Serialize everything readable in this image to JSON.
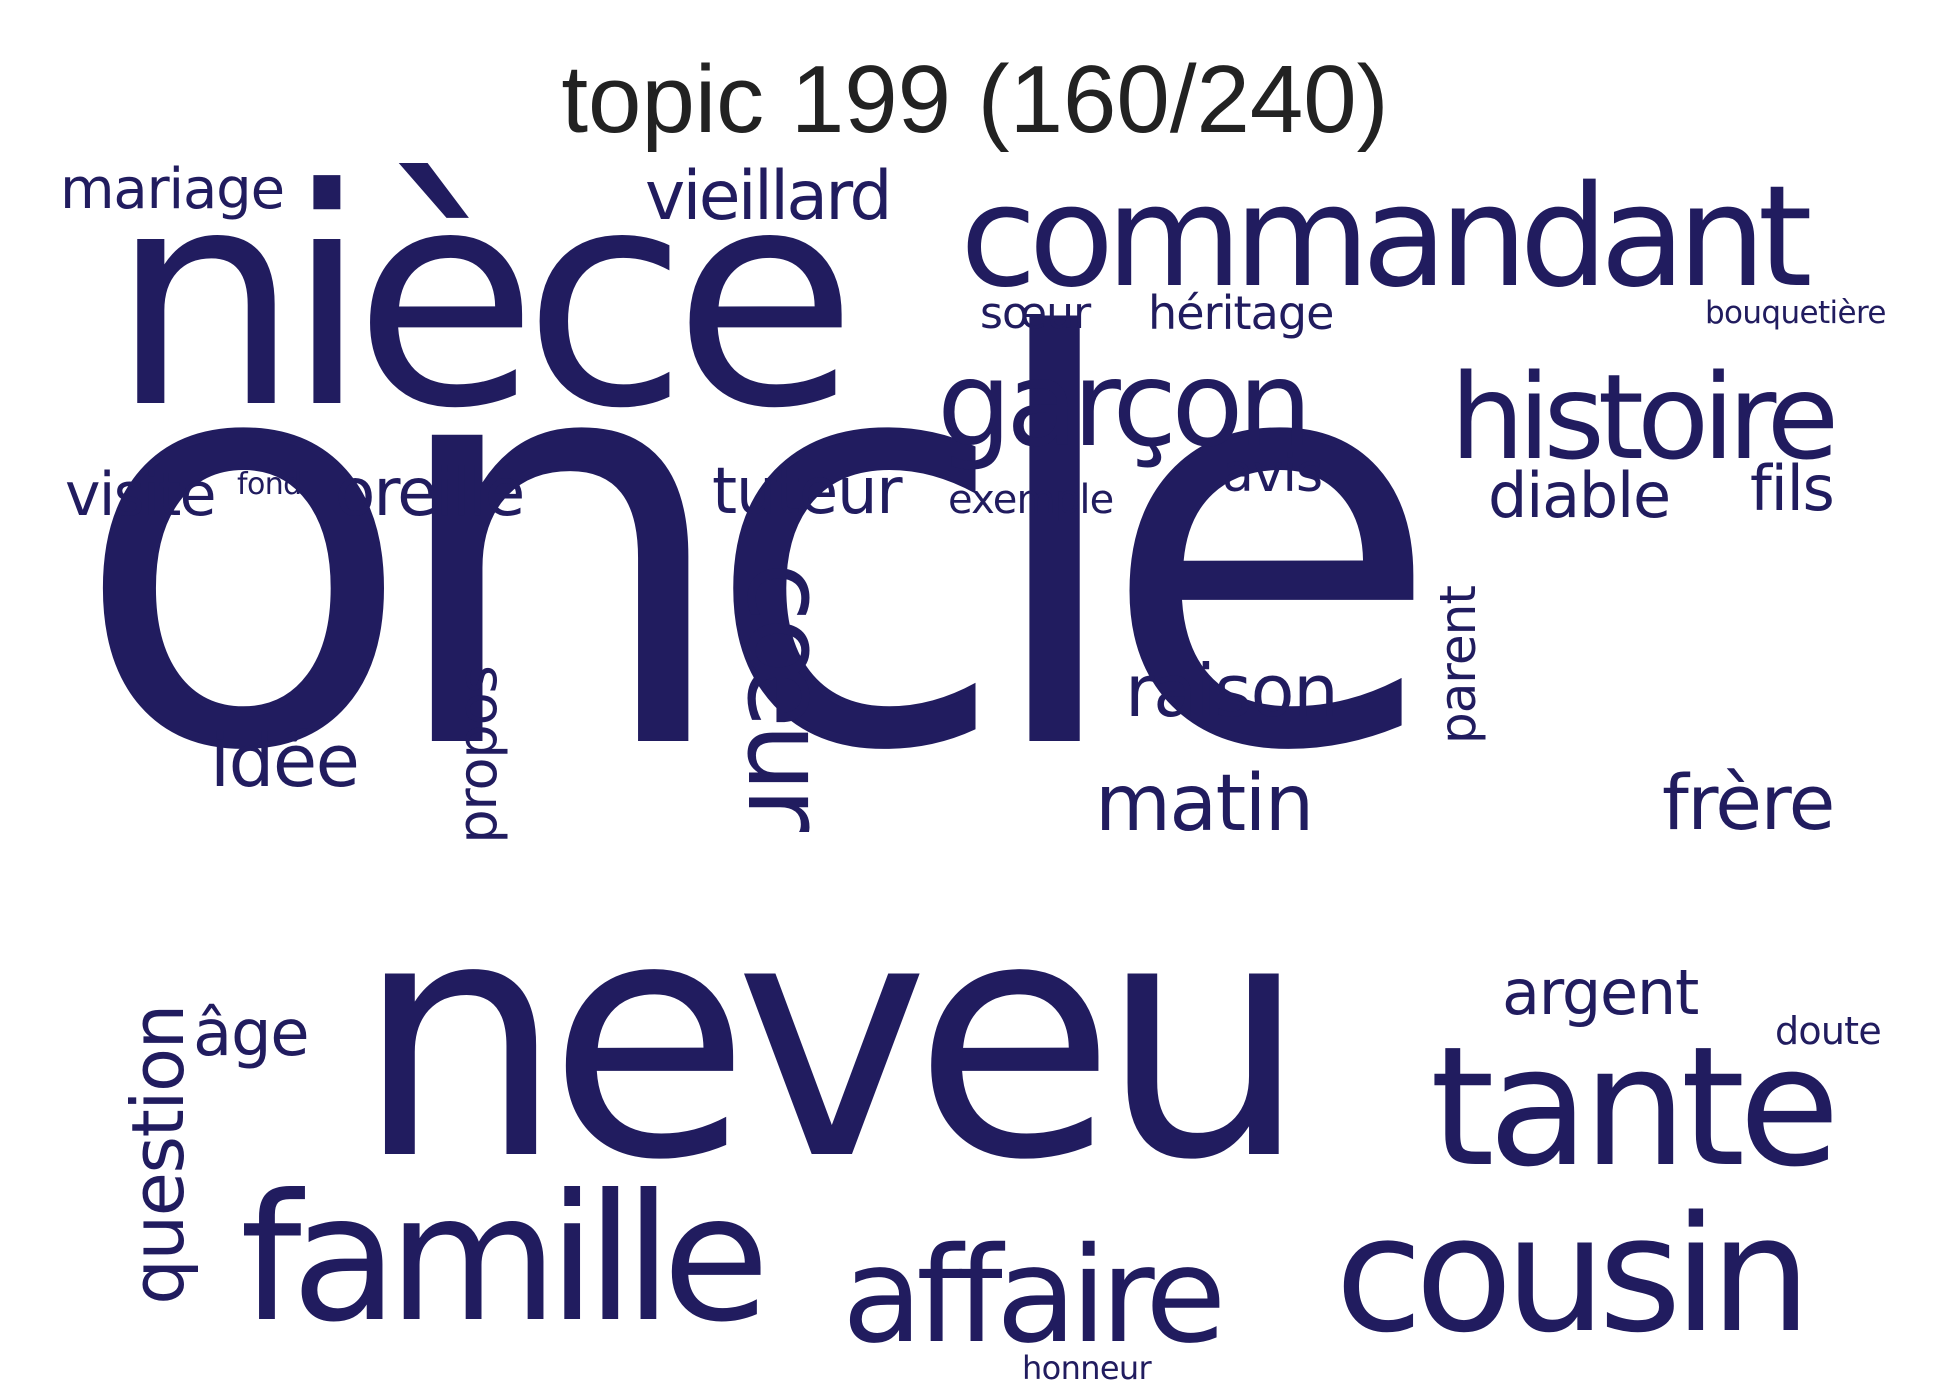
{
  "title": "topic 199 (160/240)",
  "word_color": "#211c5f",
  "words": [
    {
      "text": "oncle",
      "weight": 1.0
    },
    {
      "text": "neveu",
      "weight": 0.62
    },
    {
      "text": "nièce",
      "weight": 0.55
    },
    {
      "text": "commandant",
      "weight": 0.38
    },
    {
      "text": "famille",
      "weight": 0.37
    },
    {
      "text": "affaire",
      "weight": 0.34
    },
    {
      "text": "cousin",
      "weight": 0.33
    },
    {
      "text": "tante",
      "weight": 0.33
    },
    {
      "text": "garçon",
      "weight": 0.26
    },
    {
      "text": "histoire",
      "weight": 0.26
    },
    {
      "text": "cœur",
      "weight": 0.24
    },
    {
      "text": "question",
      "weight": 0.17
    },
    {
      "text": "matin",
      "weight": 0.17
    },
    {
      "text": "frère",
      "weight": 0.16
    },
    {
      "text": "raison",
      "weight": 0.16
    },
    {
      "text": "vieillard",
      "weight": 0.15
    },
    {
      "text": "idée",
      "weight": 0.15
    },
    {
      "text": "oreille",
      "weight": 0.15
    },
    {
      "text": "propos",
      "weight": 0.13
    },
    {
      "text": "tuteur",
      "weight": 0.14
    },
    {
      "text": "diable",
      "weight": 0.13
    },
    {
      "text": "argent",
      "weight": 0.13
    },
    {
      "text": "âge",
      "weight": 0.13
    },
    {
      "text": "parent",
      "weight": 0.12
    },
    {
      "text": "mariage",
      "weight": 0.12
    },
    {
      "text": "visite",
      "weight": 0.13
    },
    {
      "text": "fils",
      "weight": 0.13
    },
    {
      "text": "avis",
      "weight": 0.11
    },
    {
      "text": "héritage",
      "weight": 0.1
    },
    {
      "text": "sœur",
      "weight": 0.1
    },
    {
      "text": "exemple",
      "weight": 0.09
    },
    {
      "text": "doute",
      "weight": 0.09
    },
    {
      "text": "honneur",
      "weight": 0.07
    },
    {
      "text": "bouquetière",
      "weight": 0.07
    },
    {
      "text": "fond",
      "weight": 0.07
    }
  ]
}
